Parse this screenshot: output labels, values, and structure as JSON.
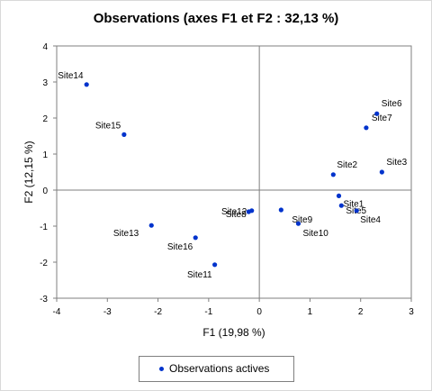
{
  "chart_data": {
    "type": "scatter",
    "title": "Observations (axes F1 et F2 : 32,13 %)",
    "xlabel": "F1 (19,98 %)",
    "ylabel": "F2 (12,15 %)",
    "xlim": [
      -4,
      3
    ],
    "ylim": [
      -3,
      4
    ],
    "xticks": [
      -4,
      -3,
      -2,
      -1,
      0,
      1,
      2,
      3
    ],
    "yticks": [
      -3,
      -2,
      -1,
      0,
      1,
      2,
      3,
      4
    ],
    "grid": false,
    "legend_position": "bottom",
    "marker_color": "#0033cc",
    "series": [
      {
        "name": "Observations actives",
        "points": [
          {
            "label": "Site14",
            "x": -3.41,
            "y": 2.93
          },
          {
            "label": "Site15",
            "x": -2.67,
            "y": 1.54
          },
          {
            "label": "Site13",
            "x": -2.13,
            "y": -0.98
          },
          {
            "label": "Site16",
            "x": -1.26,
            "y": -1.32
          },
          {
            "label": "Site11",
            "x": -0.88,
            "y": -2.07
          },
          {
            "label": "Site12",
            "x": -0.21,
            "y": -0.6
          },
          {
            "label": "Site8",
            "x": -0.15,
            "y": -0.57
          },
          {
            "label": "Site9",
            "x": 0.43,
            "y": -0.55
          },
          {
            "label": "Site10",
            "x": 0.77,
            "y": -0.93
          },
          {
            "label": "Site2",
            "x": 1.46,
            "y": 0.43
          },
          {
            "label": "Site1",
            "x": 1.57,
            "y": -0.16
          },
          {
            "label": "Site5",
            "x": 1.62,
            "y": -0.43
          },
          {
            "label": "Site4",
            "x": 1.92,
            "y": -0.57
          },
          {
            "label": "Site7",
            "x": 2.11,
            "y": 1.73
          },
          {
            "label": "Site6",
            "x": 2.32,
            "y": 2.12
          },
          {
            "label": "Site3",
            "x": 2.42,
            "y": 0.5
          }
        ]
      }
    ]
  }
}
